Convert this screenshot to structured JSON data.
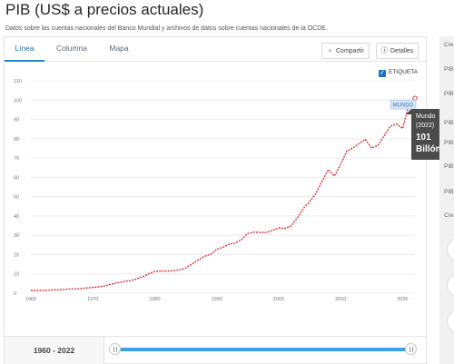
{
  "page": {
    "title": "PIB (US$ a precios actuales)",
    "subtitle": "Datos sobre las cuentas nacionales del Banco Mundial y archivos de datos sobre cuentas nacionales de la OCDE."
  },
  "tabs": [
    {
      "label": "Línea",
      "active": true
    },
    {
      "label": "Columna",
      "active": false
    },
    {
      "label": "Mapa",
      "active": false
    }
  ],
  "toolbar": {
    "share_label": "Compartir",
    "details_label": "Detalles",
    "share_icon": "share-icon",
    "details_icon": "info-icon"
  },
  "legend_toggle": {
    "label": "ETIQUETA",
    "checked": true
  },
  "chart_data": {
    "type": "line",
    "series": [
      {
        "color": "#e0303a",
        "x": [
          1960,
          1961,
          1962,
          1963,
          1964,
          1965,
          1966,
          1967,
          1968,
          1969,
          1970,
          1971,
          1972,
          1973,
          1974,
          1975,
          1976,
          1977,
          1978,
          1979,
          1980,
          1981,
          1982,
          1983,
          1984,
          1985,
          1986,
          1987,
          1988,
          1989,
          1990,
          1991,
          1992,
          1993,
          1994,
          1995,
          1996,
          1997,
          1998,
          1999,
          2000,
          2001,
          2002,
          2003,
          2004,
          2005,
          2006,
          2007,
          2008,
          2009,
          2010,
          2011,
          2012,
          2013,
          2014,
          2015,
          2016,
          2017,
          2018,
          2019,
          2020,
          2021,
          2022
        ],
        "y": [
          1.4,
          1.4,
          1.5,
          1.6,
          1.8,
          1.9,
          2.1,
          2.2,
          2.4,
          2.7,
          3.0,
          3.3,
          3.8,
          4.6,
          5.4,
          6.0,
          6.5,
          7.3,
          8.5,
          10.0,
          11.3,
          11.5,
          11.4,
          11.7,
          12.1,
          13.0,
          15.1,
          17.2,
          19.1,
          20.1,
          22.7,
          23.8,
          25.4,
          25.9,
          27.8,
          31.0,
          31.6,
          31.5,
          31.4,
          32.6,
          33.8,
          33.6,
          34.8,
          39.0,
          43.9,
          47.5,
          51.5,
          58.0,
          64.0,
          60.7,
          66.6,
          73.7,
          75.2,
          77.5,
          79.6,
          75.2,
          76.5,
          81.4,
          86.4,
          87.7,
          85.3,
          97.5,
          101.0
        ]
      }
    ],
    "xlim": [
      1960,
      2022
    ],
    "ylim": [
      0,
      110
    ],
    "xticks": [
      1960,
      1970,
      1980,
      1990,
      2000,
      2010,
      2020
    ],
    "yticks": [
      0,
      10,
      20,
      30,
      40,
      50,
      60,
      70,
      80,
      90,
      100,
      110
    ],
    "grid": true,
    "end_label": "MUNDO"
  },
  "tooltip": {
    "line1": "Mundo",
    "line2": "(2022)",
    "line3": "101",
    "line4": "Billón"
  },
  "range": {
    "label": "1960 - 2022",
    "start": 1960,
    "end": 2022
  },
  "sidebar": {
    "items": [
      "Cre",
      "PIB",
      "PIB",
      "PIB",
      "PIB",
      "PIB",
      "PIB",
      "Cre"
    ]
  }
}
